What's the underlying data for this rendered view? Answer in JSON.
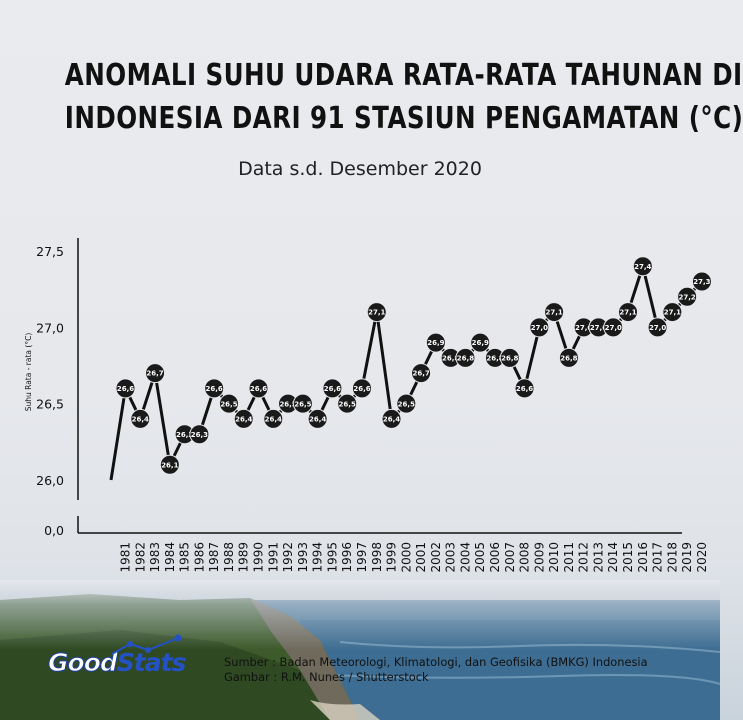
{
  "header": {
    "title_line1": "ANOMALI SUHU UDARA RATA-RATA TAHUNAN DI",
    "title_line2": "INDONESIA DARI 91 STASIUN PENGAMATAN (°C)",
    "subtitle": "Data s.d. Desember 2020"
  },
  "chart_data": {
    "type": "line",
    "title": "ANOMALI SUHU UDARA RATA-RATA TAHUNAN DI INDONESIA DARI 91 STASIUN PENGAMATAN (°C)",
    "ylabel": "Suhu Rata - rata (°C)",
    "xlabel": "",
    "y_ticks": [
      "0,0",
      "26,0",
      "26,5",
      "27,0",
      "27,5"
    ],
    "ylim": [
      26.0,
      27.5
    ],
    "y_axis_break": "0,0 shown below broken axis",
    "line_color": "#111111",
    "marker_color": "#1a1a1a",
    "label_color": "#ffffff",
    "start_value": 26.0,
    "x": [
      "1981",
      "1982",
      "1983",
      "1984",
      "1985",
      "1986",
      "1987",
      "1988",
      "1989",
      "1990",
      "1991",
      "1992",
      "1993",
      "1994",
      "1995",
      "1996",
      "1997",
      "1998",
      "1999",
      "2000",
      "2001",
      "2002",
      "2003",
      "2004",
      "2005",
      "2006",
      "2007",
      "2008",
      "2009",
      "2010",
      "2011",
      "2012",
      "2013",
      "2014",
      "2015",
      "2016",
      "2017",
      "2018",
      "2019",
      "2020"
    ],
    "values": [
      26.6,
      26.4,
      26.7,
      26.1,
      26.3,
      26.3,
      26.6,
      26.5,
      26.4,
      26.6,
      26.4,
      26.5,
      26.5,
      26.4,
      26.6,
      26.5,
      26.6,
      27.1,
      26.4,
      26.5,
      26.7,
      26.9,
      26.8,
      26.8,
      26.9,
      26.8,
      26.8,
      26.6,
      27.0,
      27.1,
      26.8,
      27.0,
      27.0,
      27.0,
      27.1,
      27.4,
      27.0,
      27.1,
      27.2,
      27.3
    ],
    "labels": [
      "26,6",
      "26,4",
      "26,7",
      "26,1",
      "26,3",
      "26,3",
      "26,6",
      "26,5",
      "26,4",
      "26,6",
      "26,4",
      "26,5",
      "26,5",
      "26,4",
      "26,6",
      "26,5",
      "26,6",
      "27,1",
      "26,4",
      "26,5",
      "26,7",
      "26,9",
      "26,8",
      "26,8",
      "26,9",
      "26,8",
      "26,8",
      "26,6",
      "27,0",
      "27,1",
      "26,8",
      "27,0",
      "27,0",
      "27,0",
      "27,1",
      "27,4",
      "27,0",
      "27,1",
      "27,2",
      "27,3"
    ]
  },
  "footer": {
    "logo_good": "Good",
    "logo_stats": "Stats",
    "source_line": "Sumber : Badan Meteorologi, Klimatologi, dan Geofisika (BMKG) Indonesia",
    "image_credit": "Gambar : R.M. Nunes / Shutterstock"
  },
  "colors": {
    "brand_blue": "#2451c6",
    "sea": "#3f6e93",
    "cliff_green": "#3d5a2a"
  }
}
